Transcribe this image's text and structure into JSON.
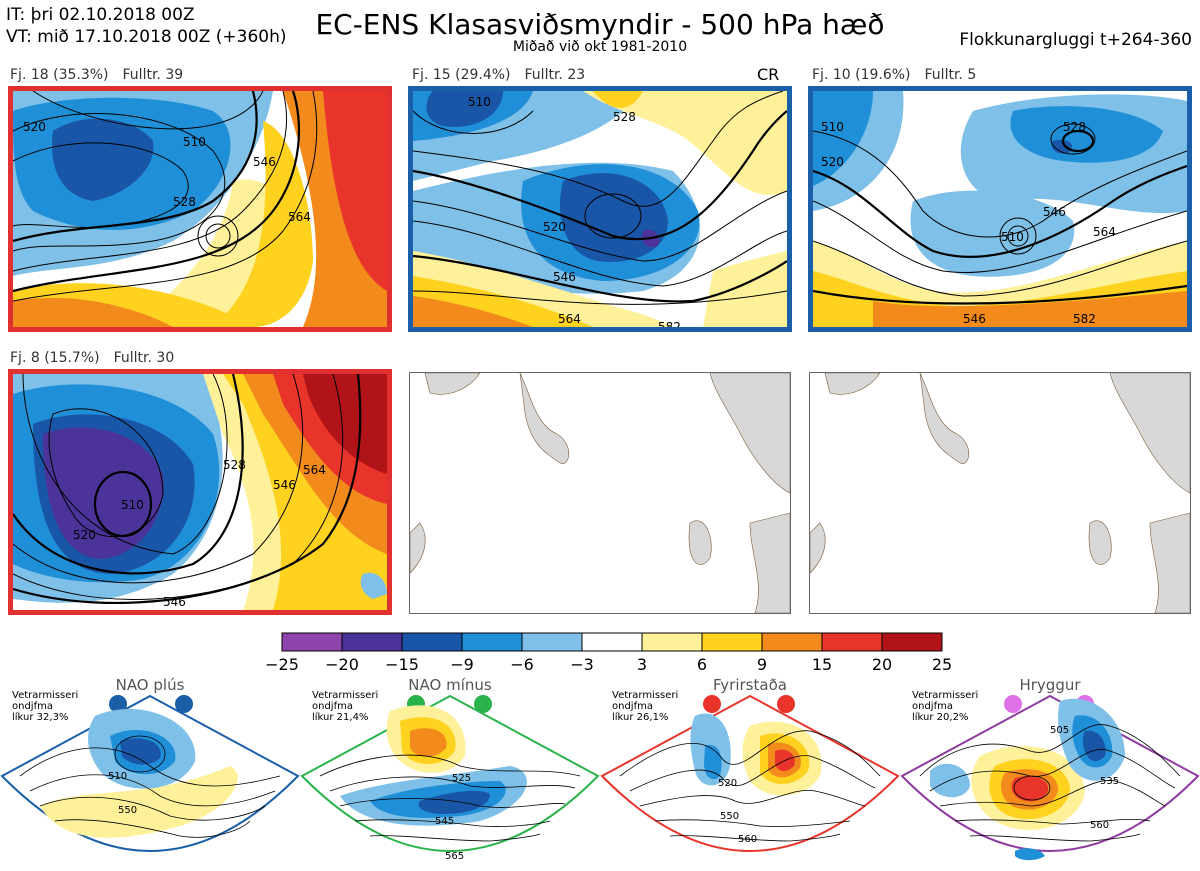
{
  "header": {
    "it_line": "IT: þri 02.10.2018 00Z",
    "vt_line": "VT: mið 17.10.2018 00Z  (+360h)",
    "title": "EC-ENS Klasasviðsmyndir - 500 hPa hæð",
    "subtitle": "Miðað við okt 1981-2010",
    "window": "Flokkunargluggi t+264-360"
  },
  "panels": [
    {
      "cluster": "Fj. 18 (35.3%)",
      "members": "Fulltr. 39",
      "border": "#e03030",
      "regime": "Fyrirstaða",
      "tag": "",
      "contours": [
        "510",
        "528",
        "520",
        "546",
        "564"
      ]
    },
    {
      "cluster": "Fj. 15 (29.4%)",
      "members": "Fulltr. 23",
      "border": "#1a5fa8",
      "regime": "NAO plús",
      "tag": "CR",
      "contours": [
        "510",
        "528",
        "520",
        "546",
        "564",
        "582"
      ]
    },
    {
      "cluster": "Fj. 10 (19.6%)",
      "members": "Fulltr. 5",
      "border": "#1a5fa8",
      "regime": "NAO plús",
      "tag": "",
      "contours": [
        "510",
        "528",
        "520",
        "510",
        "546",
        "564",
        "546",
        "582"
      ]
    },
    {
      "cluster": "Fj. 8 (15.7%)",
      "members": "Fulltr. 30",
      "border": "#e03030",
      "regime": "Fyrirstaða",
      "tag": "",
      "contours": [
        "528",
        "510",
        "520",
        "546",
        "564",
        "546"
      ]
    }
  ],
  "colorbar": {
    "ticks": [
      "−25",
      "−20",
      "−15",
      "−9",
      "−6",
      "−3",
      "3",
      "6",
      "9",
      "15",
      "20",
      "25"
    ],
    "colors": [
      "#8e44ad",
      "#4b3399",
      "#1a56a8",
      "#1f8fd8",
      "#7fc0e8",
      "#ffffff",
      "#fff19a",
      "#ffd21f",
      "#f28a1c",
      "#e8342a",
      "#b01419"
    ]
  },
  "regimes": [
    {
      "name": "NAO plús",
      "note1": "Vetrarmisseri",
      "note2": "ondjfma",
      "note3": "líkur 32,3%",
      "color": "#1a5fa8",
      "labels": [
        "510",
        "550"
      ]
    },
    {
      "name": "NAO mínus",
      "note1": "Vetrarmisseri",
      "note2": "ondjfma",
      "note3": "líkur 21,4%",
      "color": "#2ab34a",
      "labels": [
        "525",
        "545",
        "565"
      ]
    },
    {
      "name": "Fyrirstaða",
      "note1": "Vetrarmisseri",
      "note2": "ondjfma",
      "note3": "líkur 26,1%",
      "color": "#e8342a",
      "labels": [
        "520",
        "550",
        "560"
      ]
    },
    {
      "name": "Hryggur",
      "note1": "Vetrarmisseri",
      "note2": "ondjfma",
      "note3": "líkur 20,2%",
      "color": "#e070e8",
      "labels": [
        "505",
        "535",
        "560"
      ]
    }
  ]
}
